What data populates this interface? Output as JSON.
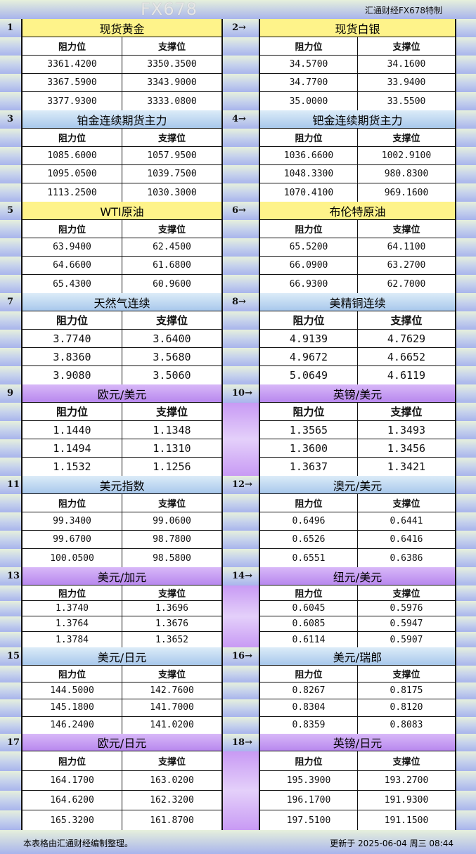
{
  "header": {
    "brand": "汇通财经FX678特制"
  },
  "colors": {
    "yellow": "#fef38a",
    "blue": "#bcd8f0",
    "purple": "#c495f2"
  },
  "col_headers": {
    "resistance": "阻力位",
    "support": "支撑位"
  },
  "sections": [
    {
      "pair": [
        {
          "index": "1",
          "title": "现货黄金",
          "theme": "yellow",
          "rows": [
            [
              "3361.4200",
              "3350.3500"
            ],
            [
              "3367.5900",
              "3343.9000"
            ],
            [
              "3377.9300",
              "3333.0800"
            ]
          ]
        },
        {
          "index": "2→",
          "title": "现货白银",
          "theme": "yellow",
          "rows": [
            [
              "34.5700",
              "34.1600"
            ],
            [
              "34.7700",
              "33.9400"
            ],
            [
              "35.0000",
              "33.5500"
            ]
          ]
        }
      ]
    },
    {
      "pair": [
        {
          "index": "3",
          "title": "铂金连续期货主力",
          "theme": "blue",
          "rows": [
            [
              "1085.6000",
              "1057.9500"
            ],
            [
              "1095.0500",
              "1039.7500"
            ],
            [
              "1113.2500",
              "1030.3000"
            ]
          ]
        },
        {
          "index": "4→",
          "title": "钯金连续期货主力",
          "theme": "blue",
          "rows": [
            [
              "1036.6600",
              "1002.9100"
            ],
            [
              "1048.3300",
              "980.8300"
            ],
            [
              "1070.4100",
              "969.1600"
            ]
          ]
        }
      ]
    },
    {
      "pair": [
        {
          "index": "5",
          "title": "WTI原油",
          "theme": "yellow",
          "rows": [
            [
              "63.9400",
              "62.4500"
            ],
            [
              "64.6600",
              "61.6800"
            ],
            [
              "65.4300",
              "60.9600"
            ]
          ]
        },
        {
          "index": "6→",
          "title": "布伦特原油",
          "theme": "yellow",
          "rows": [
            [
              "65.5200",
              "64.1100"
            ],
            [
              "66.0900",
              "63.2700"
            ],
            [
              "66.9300",
              "62.7000"
            ]
          ]
        }
      ]
    },
    {
      "pair": [
        {
          "index": "7",
          "title": "天然气连续",
          "theme": "blue",
          "rows": [
            [
              "3.7740",
              "3.6400"
            ],
            [
              "3.8360",
              "3.5680"
            ],
            [
              "3.9080",
              "3.5060"
            ]
          ]
        },
        {
          "index": "8→",
          "title": "美精铜连续",
          "theme": "blue",
          "rows": [
            [
              "4.9139",
              "4.7629"
            ],
            [
              "4.9672",
              "4.6652"
            ],
            [
              "5.0649",
              "4.6119"
            ]
          ]
        }
      ]
    },
    {
      "pair": [
        {
          "index": "9",
          "title": "欧元/美元",
          "theme": "purple",
          "rows": [
            [
              "1.1440",
              "1.1348"
            ],
            [
              "1.1494",
              "1.1310"
            ],
            [
              "1.1532",
              "1.1256"
            ]
          ]
        },
        {
          "index": "10→",
          "title": "英镑/美元",
          "theme": "purple",
          "rows": [
            [
              "1.3565",
              "1.3493"
            ],
            [
              "1.3600",
              "1.3456"
            ],
            [
              "1.3637",
              "1.3421"
            ]
          ]
        }
      ]
    },
    {
      "pair": [
        {
          "index": "11",
          "title": "美元指数",
          "theme": "blue",
          "rows": [
            [
              "99.3400",
              "99.0600"
            ],
            [
              "99.6700",
              "98.7800"
            ],
            [
              "100.0500",
              "98.5800"
            ]
          ]
        },
        {
          "index": "12→",
          "title": "澳元/美元",
          "theme": "blue",
          "rows": [
            [
              "0.6496",
              "0.6441"
            ],
            [
              "0.6526",
              "0.6416"
            ],
            [
              "0.6551",
              "0.6386"
            ]
          ]
        }
      ]
    },
    {
      "pair": [
        {
          "index": "13",
          "title": "美元/加元",
          "theme": "purple",
          "rows": [
            [
              "1.3740",
              "1.3696"
            ],
            [
              "1.3764",
              "1.3676"
            ],
            [
              "1.3784",
              "1.3652"
            ]
          ]
        },
        {
          "index": "14→",
          "title": "纽元/美元",
          "theme": "purple",
          "rows": [
            [
              "0.6045",
              "0.5976"
            ],
            [
              "0.6085",
              "0.5947"
            ],
            [
              "0.6114",
              "0.5907"
            ]
          ]
        }
      ]
    },
    {
      "pair": [
        {
          "index": "15",
          "title": "美元/日元",
          "theme": "blue",
          "rows": [
            [
              "144.5000",
              "142.7600"
            ],
            [
              "145.1800",
              "141.7000"
            ],
            [
              "146.2400",
              "141.0200"
            ]
          ]
        },
        {
          "index": "16→",
          "title": "美元/瑞郎",
          "theme": "blue",
          "rows": [
            [
              "0.8267",
              "0.8175"
            ],
            [
              "0.8304",
              "0.8120"
            ],
            [
              "0.8359",
              "0.8083"
            ]
          ]
        }
      ]
    },
    {
      "pair": [
        {
          "index": "17",
          "title": "欧元/日元",
          "theme": "purple",
          "rows": [
            [
              "164.1700",
              "163.0200"
            ],
            [
              "164.6200",
              "162.3200"
            ],
            [
              "165.3200",
              "161.8700"
            ]
          ]
        },
        {
          "index": "18→",
          "title": "英镑/日元",
          "theme": "purple",
          "rows": [
            [
              "195.3900",
              "193.2700"
            ],
            [
              "196.1700",
              "191.9300"
            ],
            [
              "197.5100",
              "191.1500"
            ]
          ]
        }
      ]
    }
  ],
  "footer": {
    "note": "本表格由汇通财经编制整理。",
    "updated": "更新于 2025-06-04 周三 08:44"
  },
  "watermark": "FX678"
}
